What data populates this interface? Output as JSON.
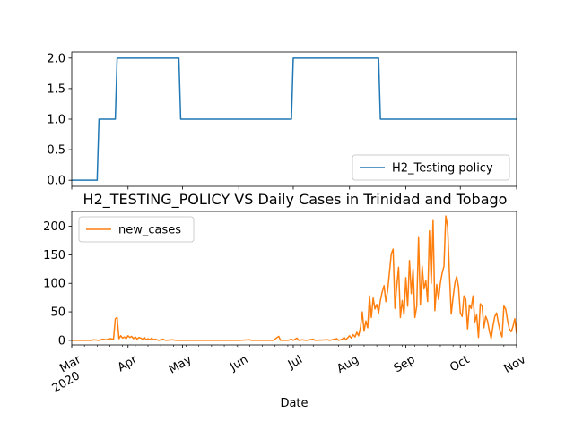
{
  "chart_data": [
    {
      "type": "line",
      "title": "",
      "xlabel": "",
      "ylabel": "",
      "ylim": [
        -0.1,
        2.1
      ],
      "yticks": [
        0.0,
        0.5,
        1.0,
        1.5,
        2.0
      ],
      "ytick_labels": [
        "0.0",
        "0.5",
        "1.0",
        "1.5",
        "2.0"
      ],
      "xlim": [
        "2020-03-01",
        "2020-11-01"
      ],
      "grid": false,
      "legend_position": "lower-right",
      "series": [
        {
          "name": "H2_Testing policy",
          "color": "#1f77b4",
          "step_points": [
            [
              "2020-03-01",
              0
            ],
            [
              "2020-03-15",
              0
            ],
            [
              "2020-03-16",
              1
            ],
            [
              "2020-03-25",
              1
            ],
            [
              "2020-03-26",
              2
            ],
            [
              "2020-04-29",
              2
            ],
            [
              "2020-04-30",
              1
            ],
            [
              "2020-06-30",
              1
            ],
            [
              "2020-07-01",
              2
            ],
            [
              "2020-08-17",
              2
            ],
            [
              "2020-08-18",
              1
            ],
            [
              "2020-11-01",
              1
            ]
          ]
        }
      ]
    },
    {
      "type": "line",
      "title": "H2_TESTING_POLICY VS Daily Cases in Trinidad and Tobago",
      "xlabel": "Date",
      "ylabel": "",
      "ylim": [
        -8,
        226
      ],
      "yticks": [
        0,
        50,
        100,
        150,
        200
      ],
      "ytick_labels": [
        "0",
        "50",
        "100",
        "150",
        "200"
      ],
      "xlim": [
        "2020-03-01",
        "2020-11-01"
      ],
      "xticks": [
        "2020-03-01",
        "2020-04-01",
        "2020-05-01",
        "2020-06-01",
        "2020-07-01",
        "2020-08-01",
        "2020-09-01",
        "2020-10-01",
        "2020-11-01"
      ],
      "xtick_labels": [
        "Mar\n2020",
        "Apr",
        "May",
        "Jun",
        "Jul",
        "Aug",
        "Sep",
        "Oct",
        "Nov"
      ],
      "grid": false,
      "legend_position": "upper-left",
      "series": [
        {
          "name": "new_cases",
          "color": "#ff7f0e",
          "points": [
            [
              "2020-03-01",
              0
            ],
            [
              "2020-03-12",
              0
            ],
            [
              "2020-03-13",
              1
            ],
            [
              "2020-03-16",
              0
            ],
            [
              "2020-03-18",
              2
            ],
            [
              "2020-03-20",
              1
            ],
            [
              "2020-03-22",
              3
            ],
            [
              "2020-03-24",
              2
            ],
            [
              "2020-03-25",
              38
            ],
            [
              "2020-03-26",
              40
            ],
            [
              "2020-03-27",
              3
            ],
            [
              "2020-03-28",
              8
            ],
            [
              "2020-03-29",
              4
            ],
            [
              "2020-03-30",
              6
            ],
            [
              "2020-03-31",
              3
            ],
            [
              "2020-04-01",
              8
            ],
            [
              "2020-04-02",
              5
            ],
            [
              "2020-04-03",
              7
            ],
            [
              "2020-04-04",
              3
            ],
            [
              "2020-04-05",
              6
            ],
            [
              "2020-04-06",
              2
            ],
            [
              "2020-04-07",
              5
            ],
            [
              "2020-04-08",
              4
            ],
            [
              "2020-04-09",
              2
            ],
            [
              "2020-04-10",
              5
            ],
            [
              "2020-04-11",
              1
            ],
            [
              "2020-04-12",
              3
            ],
            [
              "2020-04-13",
              1
            ],
            [
              "2020-04-14",
              4
            ],
            [
              "2020-04-15",
              1
            ],
            [
              "2020-04-16",
              2
            ],
            [
              "2020-04-18",
              0
            ],
            [
              "2020-04-20",
              2
            ],
            [
              "2020-04-22",
              0
            ],
            [
              "2020-04-25",
              1
            ],
            [
              "2020-04-28",
              0
            ],
            [
              "2020-05-15",
              0
            ],
            [
              "2020-06-01",
              0
            ],
            [
              "2020-06-07",
              1
            ],
            [
              "2020-06-08",
              0
            ],
            [
              "2020-06-20",
              0
            ],
            [
              "2020-06-23",
              7
            ],
            [
              "2020-06-24",
              0
            ],
            [
              "2020-06-28",
              0
            ],
            [
              "2020-06-30",
              2
            ],
            [
              "2020-07-01",
              0
            ],
            [
              "2020-07-03",
              4
            ],
            [
              "2020-07-04",
              0
            ],
            [
              "2020-07-06",
              1
            ],
            [
              "2020-07-08",
              0
            ],
            [
              "2020-07-12",
              2
            ],
            [
              "2020-07-13",
              0
            ],
            [
              "2020-07-20",
              1
            ],
            [
              "2020-07-21",
              0
            ],
            [
              "2020-07-25",
              3
            ],
            [
              "2020-07-26",
              0
            ],
            [
              "2020-07-28",
              2
            ],
            [
              "2020-07-29",
              5
            ],
            [
              "2020-07-30",
              1
            ],
            [
              "2020-08-01",
              8
            ],
            [
              "2020-08-02",
              4
            ],
            [
              "2020-08-03",
              10
            ],
            [
              "2020-08-04",
              6
            ],
            [
              "2020-08-05",
              14
            ],
            [
              "2020-08-06",
              8
            ],
            [
              "2020-08-07",
              22
            ],
            [
              "2020-08-08",
              50
            ],
            [
              "2020-08-09",
              16
            ],
            [
              "2020-08-10",
              34
            ],
            [
              "2020-08-11",
              22
            ],
            [
              "2020-08-12",
              78
            ],
            [
              "2020-08-13",
              40
            ],
            [
              "2020-08-14",
              74
            ],
            [
              "2020-08-15",
              55
            ],
            [
              "2020-08-16",
              63
            ],
            [
              "2020-08-17",
              48
            ],
            [
              "2020-08-18",
              70
            ],
            [
              "2020-08-19",
              85
            ],
            [
              "2020-08-20",
              96
            ],
            [
              "2020-08-21",
              68
            ],
            [
              "2020-08-22",
              88
            ],
            [
              "2020-08-23",
              120
            ],
            [
              "2020-08-24",
              152
            ],
            [
              "2020-08-25",
              160
            ],
            [
              "2020-08-26",
              56
            ],
            [
              "2020-08-27",
              95
            ],
            [
              "2020-08-28",
              128
            ],
            [
              "2020-08-29",
              40
            ],
            [
              "2020-08-30",
              70
            ],
            [
              "2020-08-31",
              45
            ],
            [
              "2020-09-01",
              110
            ],
            [
              "2020-09-02",
              60
            ],
            [
              "2020-09-03",
              140
            ],
            [
              "2020-09-04",
              82
            ],
            [
              "2020-09-05",
              125
            ],
            [
              "2020-09-06",
              40
            ],
            [
              "2020-09-07",
              60
            ],
            [
              "2020-09-08",
              180
            ],
            [
              "2020-09-09",
              62
            ],
            [
              "2020-09-10",
              130
            ],
            [
              "2020-09-11",
              90
            ],
            [
              "2020-09-12",
              105
            ],
            [
              "2020-09-13",
              68
            ],
            [
              "2020-09-14",
              192
            ],
            [
              "2020-09-15",
              100
            ],
            [
              "2020-09-16",
              210
            ],
            [
              "2020-09-17",
              52
            ],
            [
              "2020-09-18",
              98
            ],
            [
              "2020-09-19",
              72
            ],
            [
              "2020-09-20",
              100
            ],
            [
              "2020-09-21",
              118
            ],
            [
              "2020-09-22",
              130
            ],
            [
              "2020-09-23",
              218
            ],
            [
              "2020-09-24",
              200
            ],
            [
              "2020-09-25",
              118
            ],
            [
              "2020-09-26",
              46
            ],
            [
              "2020-09-27",
              75
            ],
            [
              "2020-09-28",
              100
            ],
            [
              "2020-09-29",
              112
            ],
            [
              "2020-09-30",
              94
            ],
            [
              "2020-10-01",
              48
            ],
            [
              "2020-10-02",
              42
            ],
            [
              "2020-10-03",
              78
            ],
            [
              "2020-10-04",
              72
            ],
            [
              "2020-10-05",
              20
            ],
            [
              "2020-10-06",
              62
            ],
            [
              "2020-10-07",
              56
            ],
            [
              "2020-10-08",
              78
            ],
            [
              "2020-10-09",
              32
            ],
            [
              "2020-10-10",
              45
            ],
            [
              "2020-10-11",
              5
            ],
            [
              "2020-10-12",
              64
            ],
            [
              "2020-10-13",
              60
            ],
            [
              "2020-10-14",
              22
            ],
            [
              "2020-10-15",
              42
            ],
            [
              "2020-10-16",
              34
            ],
            [
              "2020-10-17",
              16
            ],
            [
              "2020-10-18",
              3
            ],
            [
              "2020-10-19",
              25
            ],
            [
              "2020-10-20",
              42
            ],
            [
              "2020-10-21",
              48
            ],
            [
              "2020-10-22",
              30
            ],
            [
              "2020-10-23",
              15
            ],
            [
              "2020-10-24",
              6
            ],
            [
              "2020-10-25",
              60
            ],
            [
              "2020-10-26",
              55
            ],
            [
              "2020-10-27",
              35
            ],
            [
              "2020-10-28",
              20
            ],
            [
              "2020-10-29",
              15
            ],
            [
              "2020-10-30",
              24
            ],
            [
              "2020-10-31",
              38
            ],
            [
              "2020-11-01",
              12
            ]
          ]
        }
      ]
    }
  ]
}
